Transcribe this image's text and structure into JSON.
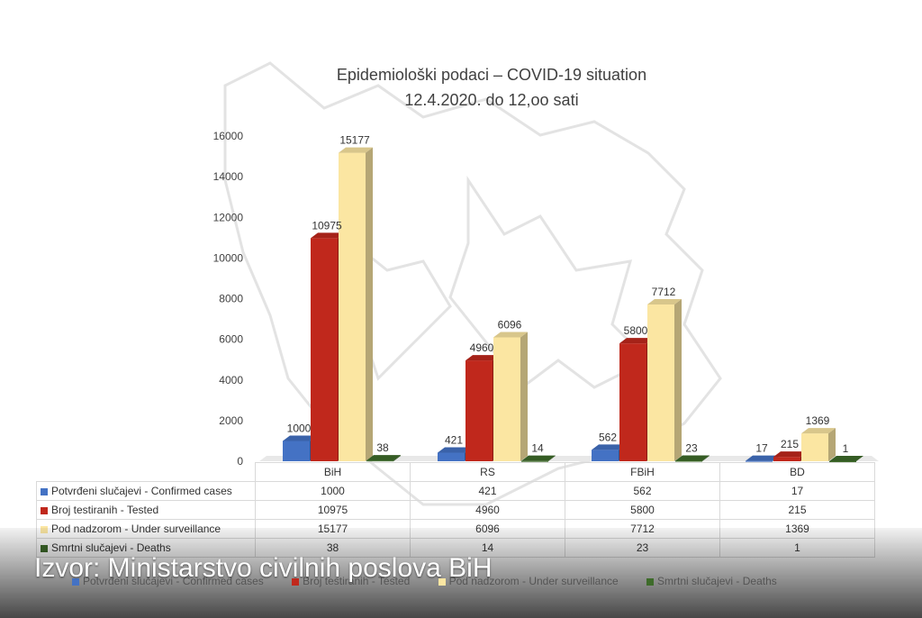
{
  "chart_data": {
    "type": "bar",
    "title": "Epidemiološki podaci – COVID-19 situation",
    "subtitle": "12.4.2020. do 12,oo sati",
    "categories": [
      "BiH",
      "RS",
      "FBiH",
      "BD"
    ],
    "series": [
      {
        "name": "Potvrđeni slučajevi - Confirmed cases",
        "color": "#4472c4",
        "values": [
          1000,
          421,
          562,
          17
        ]
      },
      {
        "name": "Broj testiranih - Tested",
        "color": "#c0281c",
        "values": [
          10975,
          4960,
          5800,
          215
        ]
      },
      {
        "name": "Pod nadzorom - Under surveillance",
        "color": "#fbe6a2",
        "values": [
          15177,
          6096,
          7712,
          1369
        ]
      },
      {
        "name": "Smrtni slučajevi - Deaths",
        "color": "#3e6b2a",
        "values": [
          38,
          14,
          23,
          1
        ]
      }
    ],
    "y_ticks": [
      "0",
      "2000",
      "4000",
      "6000",
      "8000",
      "10000",
      "12000",
      "14000",
      "16000"
    ],
    "ylim": [
      0,
      16000
    ],
    "grid": false,
    "legend": "bottom",
    "data_table": true
  },
  "source_caption": "Izvor: Ministarstvo civilnih poslova BiH"
}
